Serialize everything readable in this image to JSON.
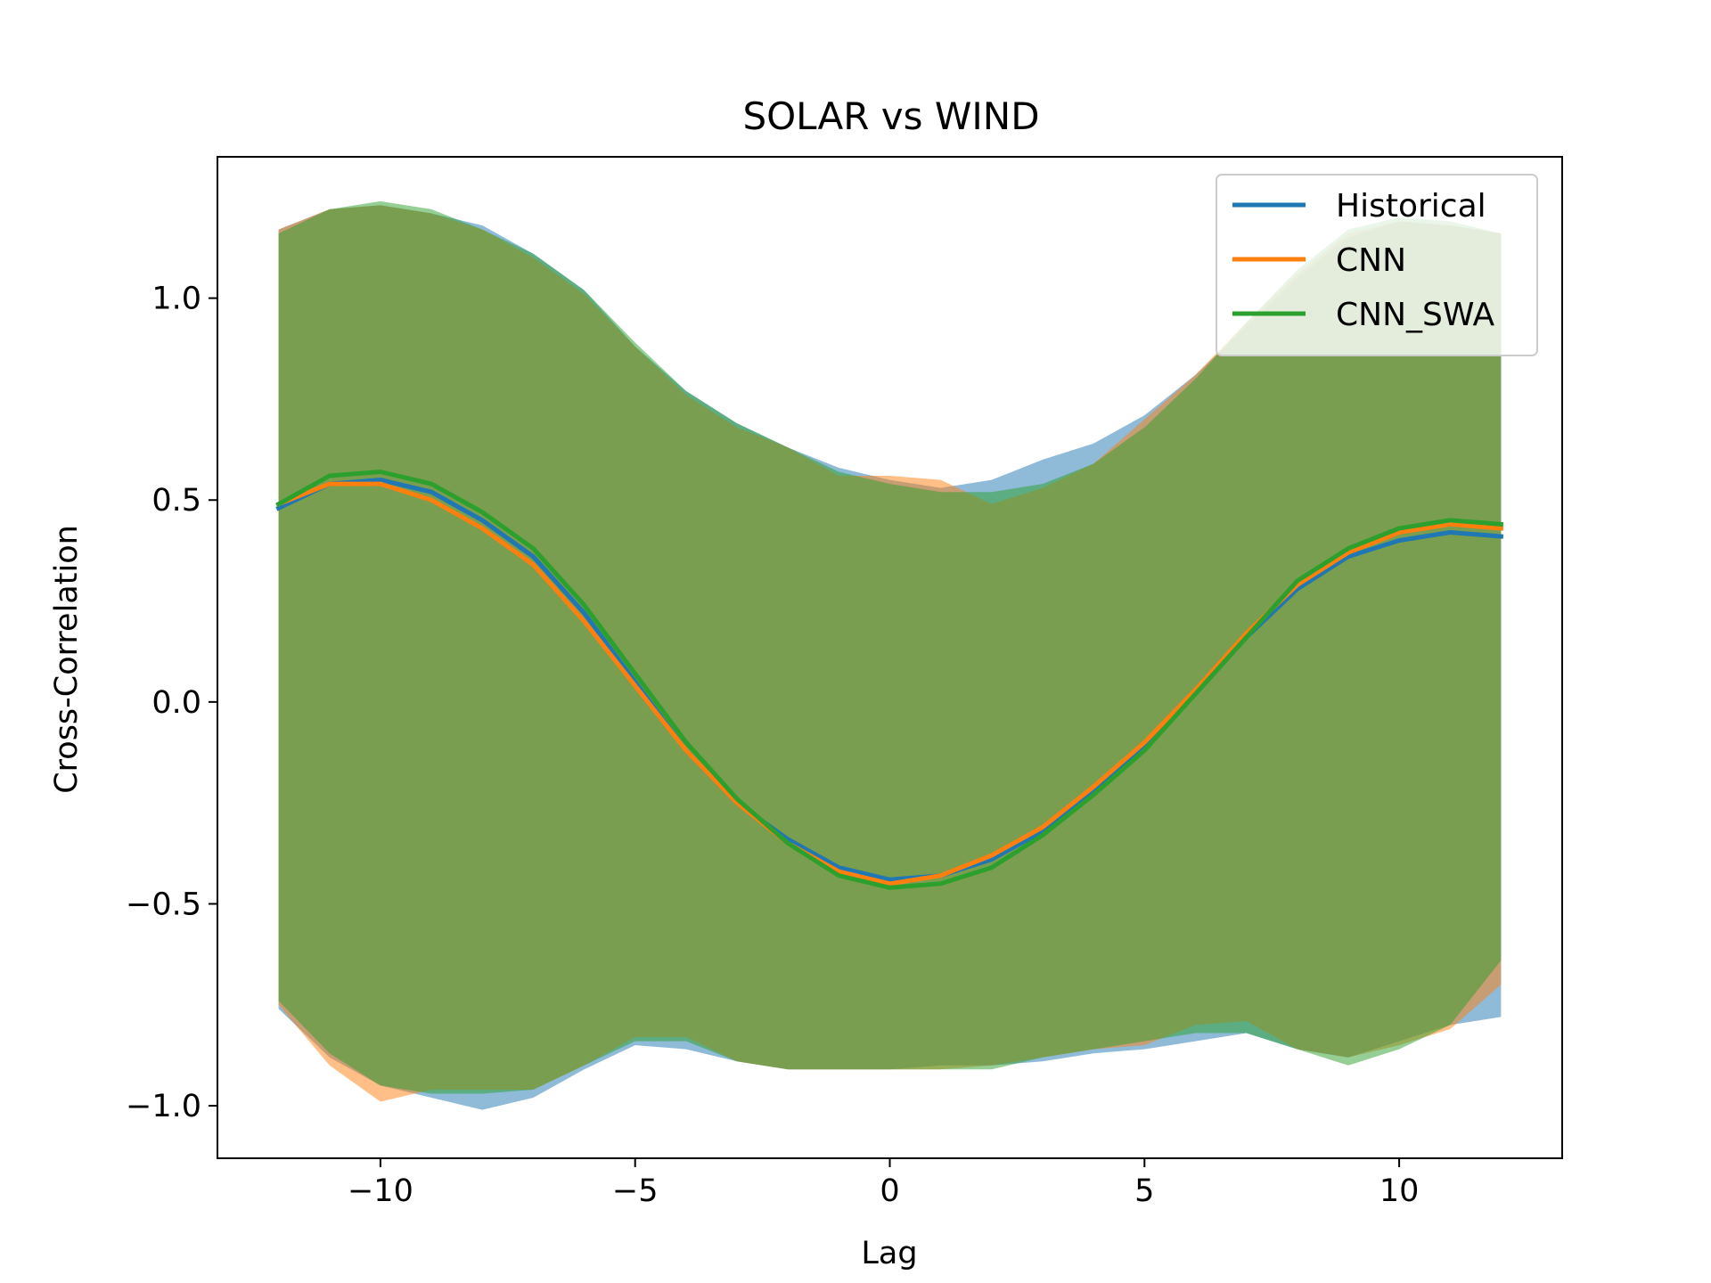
{
  "chart_data": {
    "type": "line",
    "title": "SOLAR vs WIND",
    "xlabel": "Lag",
    "ylabel": "Cross-Correlation",
    "xlim": [
      -13.2,
      13.2
    ],
    "ylim": [
      -1.13,
      1.35
    ],
    "xticks": [
      -10,
      -5,
      0,
      5,
      10
    ],
    "xtick_labels": [
      "−10",
      "−5",
      "0",
      "5",
      "10"
    ],
    "yticks": [
      -1.0,
      -0.5,
      0.0,
      0.5,
      1.0
    ],
    "ytick_labels": [
      "−1.0",
      "−0.5",
      "0.0",
      "0.5",
      "1.0"
    ],
    "grid": false,
    "legend_position": "top-right",
    "x": [
      -12,
      -11,
      -10,
      -9,
      -8,
      -7,
      -6,
      -5,
      -4,
      -3,
      -2,
      -1,
      0,
      1,
      2,
      3,
      4,
      5,
      6,
      7,
      8,
      9,
      10,
      11,
      12
    ],
    "series": [
      {
        "name": "Historical",
        "color": "#1f77b4",
        "values": [
          0.48,
          0.54,
          0.55,
          0.52,
          0.45,
          0.36,
          0.22,
          0.05,
          -0.12,
          -0.25,
          -0.34,
          -0.41,
          -0.44,
          -0.43,
          -0.39,
          -0.32,
          -0.22,
          -0.11,
          0.02,
          0.16,
          0.28,
          0.36,
          0.4,
          0.42,
          0.41
        ],
        "band_upper": [
          1.17,
          1.22,
          1.23,
          1.21,
          1.18,
          1.11,
          1.02,
          0.88,
          0.77,
          0.69,
          0.63,
          0.58,
          0.55,
          0.53,
          0.55,
          0.6,
          0.64,
          0.71,
          0.81,
          0.93,
          1.05,
          1.15,
          1.19,
          1.18,
          1.16
        ],
        "band_lower": [
          -0.76,
          -0.88,
          -0.95,
          -0.98,
          -1.01,
          -0.98,
          -0.91,
          -0.85,
          -0.86,
          -0.89,
          -0.91,
          -0.91,
          -0.91,
          -0.9,
          -0.9,
          -0.89,
          -0.87,
          -0.86,
          -0.84,
          -0.82,
          -0.86,
          -0.88,
          -0.84,
          -0.8,
          -0.78
        ]
      },
      {
        "name": "CNN",
        "color": "#ff7f0e",
        "values": [
          0.49,
          0.54,
          0.54,
          0.5,
          0.43,
          0.34,
          0.2,
          0.04,
          -0.12,
          -0.25,
          -0.35,
          -0.42,
          -0.45,
          -0.43,
          -0.38,
          -0.31,
          -0.21,
          -0.1,
          0.03,
          0.17,
          0.29,
          0.37,
          0.42,
          0.44,
          0.43
        ],
        "band_upper": [
          1.17,
          1.22,
          1.23,
          1.21,
          1.17,
          1.1,
          1.01,
          0.88,
          0.76,
          0.68,
          0.63,
          0.56,
          0.56,
          0.55,
          0.49,
          0.53,
          0.59,
          0.7,
          0.81,
          0.94,
          1.06,
          1.16,
          1.19,
          1.18,
          1.16
        ],
        "band_lower": [
          -0.75,
          -0.9,
          -0.99,
          -0.96,
          -0.96,
          -0.96,
          -0.9,
          -0.83,
          -0.83,
          -0.89,
          -0.91,
          -0.91,
          -0.91,
          -0.91,
          -0.9,
          -0.88,
          -0.86,
          -0.85,
          -0.8,
          -0.79,
          -0.86,
          -0.88,
          -0.85,
          -0.81,
          -0.7
        ]
      },
      {
        "name": "CNN_SWA",
        "color": "#2ca02c",
        "values": [
          0.49,
          0.56,
          0.57,
          0.54,
          0.47,
          0.38,
          0.24,
          0.07,
          -0.1,
          -0.24,
          -0.35,
          -0.43,
          -0.46,
          -0.45,
          -0.41,
          -0.33,
          -0.23,
          -0.12,
          0.02,
          0.16,
          0.3,
          0.38,
          0.43,
          0.45,
          0.44
        ],
        "band_upper": [
          1.16,
          1.22,
          1.24,
          1.22,
          1.17,
          1.11,
          1.02,
          0.89,
          0.77,
          0.69,
          0.63,
          0.57,
          0.54,
          0.52,
          0.52,
          0.54,
          0.59,
          0.68,
          0.8,
          0.94,
          1.07,
          1.17,
          1.2,
          1.19,
          1.16
        ],
        "band_lower": [
          -0.74,
          -0.87,
          -0.95,
          -0.97,
          -0.97,
          -0.96,
          -0.9,
          -0.84,
          -0.84,
          -0.89,
          -0.91,
          -0.91,
          -0.91,
          -0.91,
          -0.91,
          -0.88,
          -0.86,
          -0.84,
          -0.82,
          -0.82,
          -0.86,
          -0.9,
          -0.86,
          -0.8,
          -0.64
        ]
      }
    ]
  }
}
